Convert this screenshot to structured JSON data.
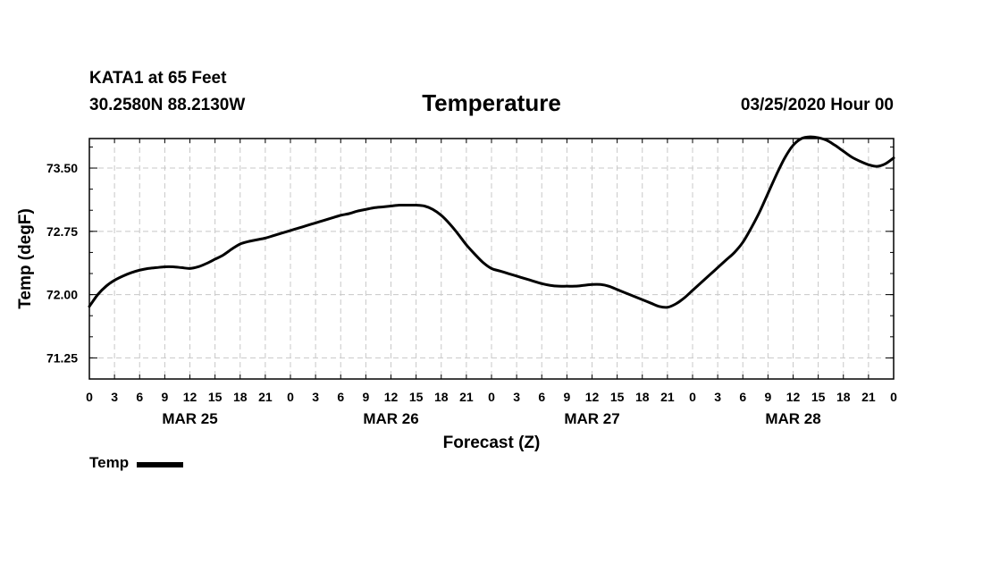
{
  "header": {
    "station_name": "KATA1 at 65 Feet",
    "station_coords": "30.2580N 88.2130W",
    "run_time": "03/25/2020 Hour 00"
  },
  "chart_data": {
    "type": "line",
    "title": "Temperature",
    "xlabel": "Forecast (Z)",
    "ylabel": "Temp (degF)",
    "grid": true,
    "legend": "bottom-left",
    "line_color": "#000000",
    "x_unit": "forecast hour",
    "xlim": [
      0,
      96
    ],
    "ylim": [
      71.0,
      73.85
    ],
    "yticks": [
      71.25,
      72.0,
      72.75,
      73.5
    ],
    "ytick_labels": [
      "71.25",
      "72.00",
      "72.75",
      "73.50"
    ],
    "xtick_labels": [
      "0",
      "3",
      "6",
      "9",
      "12",
      "15",
      "18",
      "21",
      "0",
      "3",
      "6",
      "9",
      "12",
      "15",
      "18",
      "21",
      "0",
      "3",
      "6",
      "9",
      "12",
      "15",
      "18",
      "21",
      "0",
      "3",
      "6",
      "9",
      "12",
      "15",
      "18",
      "21",
      "0"
    ],
    "day_labels": [
      {
        "label": "MAR 25",
        "hour": 12
      },
      {
        "label": "MAR 26",
        "hour": 36
      },
      {
        "label": "MAR 27",
        "hour": 60
      },
      {
        "label": "MAR 28",
        "hour": 84
      }
    ],
    "series": [
      {
        "name": "Temp",
        "x": [
          0,
          1,
          2,
          3,
          4,
          5,
          6,
          7,
          8,
          9,
          10,
          11,
          12,
          13,
          14,
          15,
          16,
          17,
          18,
          19,
          20,
          21,
          22,
          23,
          24,
          25,
          26,
          27,
          28,
          29,
          30,
          31,
          32,
          33,
          34,
          35,
          36,
          37,
          38,
          39,
          40,
          41,
          42,
          43,
          44,
          45,
          46,
          47,
          48,
          49,
          50,
          51,
          52,
          53,
          54,
          55,
          56,
          57,
          58,
          59,
          60,
          61,
          62,
          63,
          64,
          65,
          66,
          67,
          68,
          69,
          70,
          71,
          72,
          73,
          74,
          75,
          76,
          77,
          78,
          79,
          80,
          81,
          82,
          83,
          84,
          85,
          86,
          87,
          88,
          89,
          90,
          91,
          92,
          93,
          94,
          95,
          96
        ],
        "values": [
          71.86,
          72.0,
          72.1,
          72.17,
          72.22,
          72.26,
          72.29,
          72.31,
          72.32,
          72.33,
          72.33,
          72.32,
          72.31,
          72.33,
          72.37,
          72.42,
          72.47,
          72.54,
          72.6,
          72.63,
          72.65,
          72.67,
          72.7,
          72.73,
          72.76,
          72.79,
          72.82,
          72.85,
          72.88,
          72.91,
          72.94,
          72.96,
          72.99,
          73.01,
          73.03,
          73.04,
          73.05,
          73.06,
          73.06,
          73.06,
          73.05,
          73.01,
          72.94,
          72.84,
          72.72,
          72.59,
          72.48,
          72.38,
          72.31,
          72.28,
          72.25,
          72.22,
          72.19,
          72.16,
          72.13,
          72.11,
          72.1,
          72.1,
          72.1,
          72.11,
          72.12,
          72.12,
          72.1,
          72.06,
          72.02,
          71.98,
          71.94,
          71.9,
          71.86,
          71.85,
          71.89,
          71.96,
          72.05,
          72.14,
          72.23,
          72.32,
          72.41,
          72.5,
          72.62,
          72.79,
          72.98,
          73.2,
          73.42,
          73.62,
          73.77,
          73.85,
          73.87,
          73.86,
          73.83,
          73.77,
          73.7,
          73.63,
          73.58,
          73.54,
          73.52,
          73.55,
          73.62
        ]
      }
    ]
  }
}
